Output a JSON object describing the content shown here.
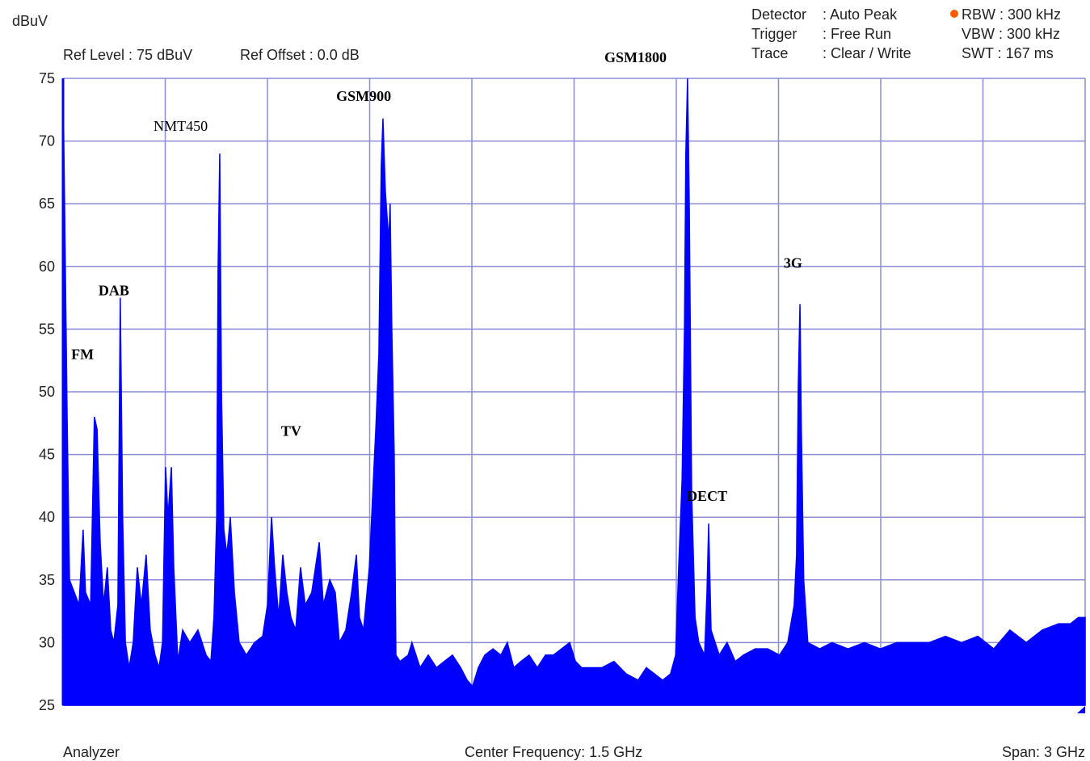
{
  "chart_data": {
    "type": "area",
    "y_unit": "dBuV",
    "ref_level": "Ref Level : 75 dBuV",
    "ref_offset": "Ref Offset : 0.0 dB",
    "settings": [
      {
        "label": "Detector",
        "value": ": Auto Peak"
      },
      {
        "label": "Trigger",
        "value": ": Free Run"
      },
      {
        "label": "Trace",
        "value": ": Clear / Write"
      }
    ],
    "bandwidth": [
      "RBW : 300 kHz",
      "VBW : 300 kHz",
      "SWT : 167 ms"
    ],
    "footer_left": "Analyzer",
    "footer_center": "Center Frequency:  1.5 GHz",
    "footer_right": "Span:  3 GHz",
    "color": "#0000ff",
    "grid": true,
    "grid_color": "#8c8cd8",
    "ylim": [
      25,
      75
    ],
    "yticks": [
      25,
      30,
      35,
      40,
      45,
      50,
      55,
      60,
      65,
      70,
      75
    ],
    "xlim": [
      0,
      3000
    ],
    "xgrid": [
      300,
      600,
      900,
      1200,
      1500,
      1800,
      2100,
      2400,
      2700,
      3000
    ],
    "x": [
      0,
      5,
      12,
      19,
      33,
      47,
      59,
      66,
      81,
      92,
      100,
      109,
      119,
      130,
      140,
      149,
      161,
      168,
      175,
      183,
      194,
      206,
      218,
      230,
      244,
      256,
      270,
      282,
      292,
      301,
      308,
      318,
      325,
      337,
      351,
      372,
      396,
      420,
      434,
      443,
      451,
      455,
      460,
      465,
      472,
      481,
      491,
      503,
      517,
      538,
      562,
      586,
      600,
      612,
      621,
      633,
      645,
      657,
      669,
      683,
      697,
      711,
      730,
      752,
      764,
      783,
      799,
      811,
      830,
      847,
      861,
      870,
      882,
      899,
      911,
      918,
      927,
      934,
      939,
      946,
      956,
      960,
      965,
      972,
      977,
      989,
      1013,
      1024,
      1048,
      1072,
      1096,
      1119,
      1143,
      1167,
      1186,
      1202,
      1219,
      1238,
      1262,
      1285,
      1304,
      1323,
      1344,
      1368,
      1392,
      1416,
      1439,
      1463,
      1487,
      1504,
      1522,
      1546,
      1582,
      1617,
      1653,
      1688,
      1712,
      1736,
      1760,
      1783,
      1798,
      1807,
      1817,
      1824,
      1828,
      1833,
      1838,
      1845,
      1855,
      1866,
      1883,
      1890,
      1895,
      1902,
      1926,
      1949,
      1973,
      1997,
      2032,
      2068,
      2103,
      2127,
      2146,
      2153,
      2158,
      2163,
      2167,
      2174,
      2186,
      2221,
      2257,
      2304,
      2352,
      2399,
      2447,
      2494,
      2542,
      2590,
      2637,
      2685,
      2732,
      2779,
      2827,
      2874,
      2922,
      2957,
      2980,
      3000
    ],
    "values": [
      75,
      64,
      48,
      35,
      34,
      33,
      39,
      34,
      33,
      48,
      47,
      38,
      33,
      36,
      31,
      30,
      33,
      57.5,
      40,
      30,
      28,
      30,
      36,
      33,
      37,
      31,
      29,
      28,
      30,
      44,
      40,
      44,
      36,
      28.5,
      31,
      30,
      31,
      29,
      28.5,
      32,
      40,
      59.5,
      69,
      50,
      39,
      37,
      40,
      34,
      30,
      29,
      30,
      30.5,
      33,
      40,
      36,
      32,
      37,
      34,
      32,
      31,
      36,
      33,
      34,
      38,
      33,
      35,
      34,
      30,
      31,
      34,
      37,
      32,
      31,
      36,
      43,
      47,
      53,
      68,
      71.8,
      66,
      62,
      65,
      55,
      45,
      29,
      28.5,
      29,
      30,
      28,
      29,
      28,
      28.5,
      29,
      28,
      27,
      26.5,
      28,
      29,
      29.5,
      29,
      30,
      28,
      28.5,
      29,
      28,
      29,
      29,
      29.5,
      30,
      28.5,
      28,
      28,
      28,
      28.5,
      27.5,
      27,
      28,
      27.5,
      27,
      27.5,
      29,
      36,
      43,
      55,
      69,
      75,
      65,
      42,
      32,
      30,
      29,
      34,
      39.5,
      31,
      29,
      30,
      28.5,
      29,
      29.5,
      29.5,
      29,
      30,
      33,
      37,
      50.5,
      57,
      47,
      35,
      30,
      29.5,
      30,
      29.5,
      30,
      29.5,
      30,
      30,
      30,
      30.5,
      30,
      30.5,
      29.5,
      31,
      30,
      31,
      31.5,
      31.5,
      32,
      32
    ],
    "annotations": [
      {
        "text": "FM",
        "x": 24,
        "y": 52.6,
        "bold": true
      },
      {
        "text": "DAB",
        "x": 104,
        "y": 57.7,
        "bold": true
      },
      {
        "text": "NMT450",
        "x": 266,
        "y": 70.8,
        "bold": false
      },
      {
        "text": "GSM900",
        "x": 802,
        "y": 73.2,
        "bold": true
      },
      {
        "text": "TV",
        "x": 640,
        "y": 46.5,
        "bold": true
      },
      {
        "text": "GSM1800",
        "x": 1589,
        "y": 76.3,
        "bold": true
      },
      {
        "text": "DECT",
        "x": 1831,
        "y": 41.3,
        "bold": true
      },
      {
        "text": "3G",
        "x": 2115,
        "y": 59.9,
        "bold": true
      }
    ]
  }
}
